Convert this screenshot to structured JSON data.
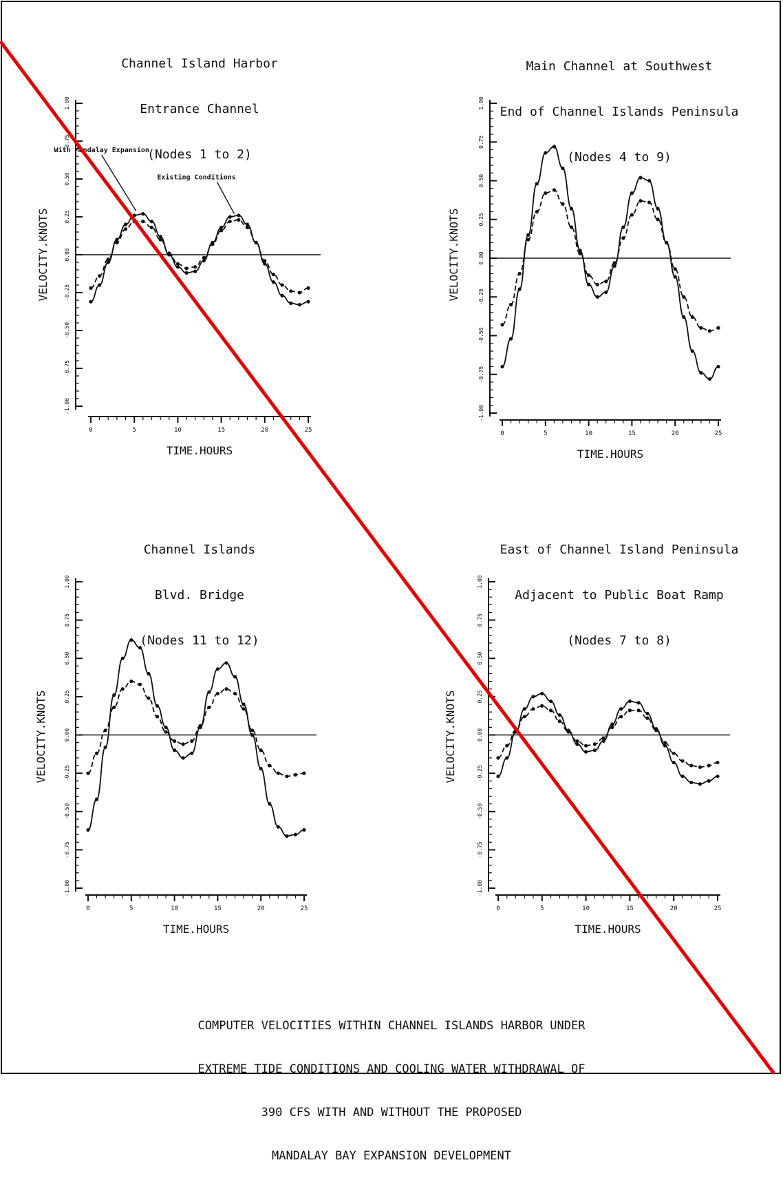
{
  "figure": {
    "caption_lines": [
      "COMPUTER VELOCITIES WITHIN CHANNEL ISLANDS HARBOR UNDER",
      "EXTREME TIDE CONDITIONS AND COOLING WATER WITHDRAWAL OF",
      "390 CFS WITH AND WITHOUT THE PROPOSED",
      "MANDALAY BAY EXPANSION DEVELOPMENT"
    ],
    "overlay_line_color": "#e00000",
    "ink_color": "#111111"
  },
  "chart_data": [
    {
      "type": "line",
      "title_lines": [
        "Channel Island Harbor",
        "Entrance Channel",
        "(Nodes 1 to 2)"
      ],
      "xlabel": "TIME.HOURS",
      "ylabel": "VELOCITY.KNOTS",
      "xlim": [
        0,
        25
      ],
      "ylim": [
        -1.0,
        1.0
      ],
      "xticks": [
        0,
        5,
        10,
        15,
        20,
        25
      ],
      "yticks": [
        -1.0,
        -0.75,
        -0.5,
        -0.25,
        0.0,
        0.25,
        0.5,
        0.75,
        1.0
      ],
      "ytick_labels": [
        "-1.00",
        "-0.75",
        "-0.50",
        "-0.25",
        "0.00",
        "0.25",
        "0.50",
        "0.75",
        "1.00"
      ],
      "annotations": [
        {
          "text": "With Mandalay Expansion",
          "x": 5.2,
          "y": 0.29
        },
        {
          "text": "Existing Conditions",
          "x": 16.5,
          "y": 0.27
        }
      ],
      "series": [
        {
          "name": "With Mandalay Expansion",
          "x": [
            0,
            1,
            2,
            3,
            4,
            5,
            6,
            7,
            8,
            9,
            10,
            11,
            12,
            13,
            14,
            15,
            16,
            17,
            18,
            19,
            20,
            21,
            22,
            23,
            24,
            25
          ],
          "values": [
            -0.31,
            -0.2,
            -0.05,
            0.1,
            0.2,
            0.26,
            0.27,
            0.22,
            0.12,
            0.0,
            -0.08,
            -0.12,
            -0.11,
            -0.04,
            0.08,
            0.18,
            0.25,
            0.26,
            0.2,
            0.08,
            -0.06,
            -0.18,
            -0.27,
            -0.32,
            -0.33,
            -0.31
          ]
        },
        {
          "name": "Existing Conditions",
          "x": [
            0,
            1,
            2,
            3,
            4,
            5,
            6,
            7,
            8,
            9,
            10,
            11,
            12,
            13,
            14,
            15,
            16,
            17,
            18,
            19,
            20,
            21,
            22,
            23,
            24,
            25
          ],
          "values": [
            -0.22,
            -0.14,
            -0.03,
            0.08,
            0.17,
            0.22,
            0.22,
            0.18,
            0.1,
            0.01,
            -0.06,
            -0.09,
            -0.08,
            -0.02,
            0.07,
            0.16,
            0.22,
            0.23,
            0.18,
            0.08,
            -0.04,
            -0.13,
            -0.2,
            -0.24,
            -0.25,
            -0.22
          ]
        }
      ]
    },
    {
      "type": "line",
      "title_lines": [
        "Main Channel at Southwest",
        "End of Channel Islands Peninsula",
        "(Nodes 4 to 9)"
      ],
      "xlabel": "TIME.HOURS",
      "ylabel": "VELOCITY.KNOTS",
      "xlim": [
        0,
        25
      ],
      "ylim": [
        -1.0,
        1.0
      ],
      "xticks": [
        0,
        5,
        10,
        15,
        20,
        25
      ],
      "yticks": [
        -1.0,
        -0.75,
        -0.5,
        -0.25,
        0.0,
        0.25,
        0.5,
        0.75,
        1.0
      ],
      "ytick_labels": [
        "-1.00",
        "-0.75",
        "-0.50",
        "-0.25",
        "0.00",
        "0.25",
        "0.50",
        "0.75",
        "1.00"
      ],
      "series": [
        {
          "x": [
            0,
            1,
            2,
            3,
            4,
            5,
            6,
            7,
            8,
            9,
            10,
            11,
            12,
            13,
            14,
            15,
            16,
            17,
            18,
            19,
            20,
            21,
            22,
            23,
            24,
            25
          ],
          "values": [
            -0.7,
            -0.52,
            -0.2,
            0.15,
            0.48,
            0.68,
            0.72,
            0.58,
            0.32,
            0.05,
            -0.17,
            -0.25,
            -0.22,
            -0.05,
            0.2,
            0.42,
            0.52,
            0.5,
            0.32,
            0.1,
            -0.12,
            -0.38,
            -0.6,
            -0.74,
            -0.78,
            -0.7
          ]
        },
        {
          "x": [
            0,
            1,
            2,
            3,
            4,
            5,
            6,
            7,
            8,
            9,
            10,
            11,
            12,
            13,
            14,
            15,
            16,
            17,
            18,
            19,
            20,
            21,
            22,
            23,
            24,
            25
          ],
          "values": [
            -0.43,
            -0.3,
            -0.1,
            0.12,
            0.3,
            0.42,
            0.44,
            0.35,
            0.2,
            0.03,
            -0.11,
            -0.17,
            -0.15,
            -0.03,
            0.13,
            0.28,
            0.37,
            0.36,
            0.25,
            0.1,
            -0.07,
            -0.25,
            -0.38,
            -0.45,
            -0.47,
            -0.45
          ]
        }
      ]
    },
    {
      "type": "line",
      "title_lines": [
        "Channel Islands",
        "Blvd. Bridge",
        "(Nodes 11 to 12)"
      ],
      "xlabel": "TIME.HOURS",
      "ylabel": "VELOCITY.KNOTS",
      "xlim": [
        0,
        25
      ],
      "ylim": [
        -1.0,
        1.0
      ],
      "xticks": [
        0,
        5,
        10,
        15,
        20,
        25
      ],
      "yticks": [
        -1.0,
        -0.75,
        -0.5,
        -0.25,
        0.0,
        0.25,
        0.5,
        0.75,
        1.0
      ],
      "ytick_labels": [
        "-1.00",
        "-0.75",
        "-0.50",
        "-0.25",
        "0.00",
        "0.25",
        "0.50",
        "0.75",
        "1.00"
      ],
      "series": [
        {
          "x": [
            0,
            1,
            2,
            3,
            4,
            5,
            6,
            7,
            8,
            9,
            10,
            11,
            12,
            13,
            14,
            15,
            16,
            17,
            18,
            19,
            20,
            21,
            22,
            23,
            24,
            25
          ],
          "values": [
            -0.62,
            -0.42,
            -0.08,
            0.26,
            0.5,
            0.62,
            0.57,
            0.4,
            0.19,
            0.05,
            -0.1,
            -0.15,
            -0.12,
            0.05,
            0.28,
            0.43,
            0.47,
            0.38,
            0.2,
            0.0,
            -0.22,
            -0.45,
            -0.6,
            -0.66,
            -0.65,
            -0.62
          ]
        },
        {
          "x": [
            0,
            1,
            2,
            3,
            4,
            5,
            6,
            7,
            8,
            9,
            10,
            11,
            12,
            13,
            14,
            15,
            16,
            17,
            18,
            19,
            20,
            21,
            22,
            23,
            24,
            25
          ],
          "values": [
            -0.25,
            -0.12,
            0.03,
            0.18,
            0.3,
            0.35,
            0.33,
            0.24,
            0.12,
            0.02,
            -0.04,
            -0.06,
            -0.04,
            0.06,
            0.18,
            0.27,
            0.3,
            0.27,
            0.17,
            0.03,
            -0.1,
            -0.2,
            -0.25,
            -0.27,
            -0.26,
            -0.25
          ]
        }
      ]
    },
    {
      "type": "line",
      "title_lines": [
        "East of Channel Island Peninsula",
        "Adjacent to Public Boat Ramp",
        "(Nodes 7 to 8)"
      ],
      "xlabel": "TIME.HOURS",
      "ylabel": "VELOCITY.KNOTS",
      "xlim": [
        0,
        25
      ],
      "ylim": [
        -1.0,
        1.0
      ],
      "xticks": [
        0,
        5,
        10,
        15,
        20,
        25
      ],
      "yticks": [
        -1.0,
        -0.75,
        -0.5,
        -0.25,
        0.0,
        0.25,
        0.5,
        0.75,
        1.0
      ],
      "ytick_labels": [
        "-1.00",
        "-0.75",
        "-0.50",
        "-0.25",
        "0.00",
        "0.25",
        "0.50",
        "0.75",
        "1.00"
      ],
      "series": [
        {
          "x": [
            0,
            1,
            2,
            3,
            4,
            5,
            6,
            7,
            8,
            9,
            10,
            11,
            12,
            13,
            14,
            15,
            16,
            17,
            18,
            19,
            20,
            21,
            22,
            23,
            24,
            25
          ],
          "values": [
            -0.27,
            -0.15,
            0.02,
            0.17,
            0.25,
            0.27,
            0.22,
            0.13,
            0.03,
            -0.06,
            -0.11,
            -0.1,
            -0.04,
            0.07,
            0.17,
            0.22,
            0.21,
            0.14,
            0.04,
            -0.07,
            -0.18,
            -0.27,
            -0.31,
            -0.32,
            -0.3,
            -0.27
          ]
        },
        {
          "x": [
            0,
            1,
            2,
            3,
            4,
            5,
            6,
            7,
            8,
            9,
            10,
            11,
            12,
            13,
            14,
            15,
            16,
            17,
            18,
            19,
            20,
            21,
            22,
            23,
            24,
            25
          ],
          "values": [
            -0.15,
            -0.07,
            0.03,
            0.12,
            0.17,
            0.19,
            0.16,
            0.09,
            0.02,
            -0.04,
            -0.07,
            -0.06,
            -0.02,
            0.05,
            0.12,
            0.16,
            0.16,
            0.11,
            0.03,
            -0.05,
            -0.12,
            -0.17,
            -0.2,
            -0.21,
            -0.2,
            -0.18
          ]
        }
      ]
    }
  ]
}
